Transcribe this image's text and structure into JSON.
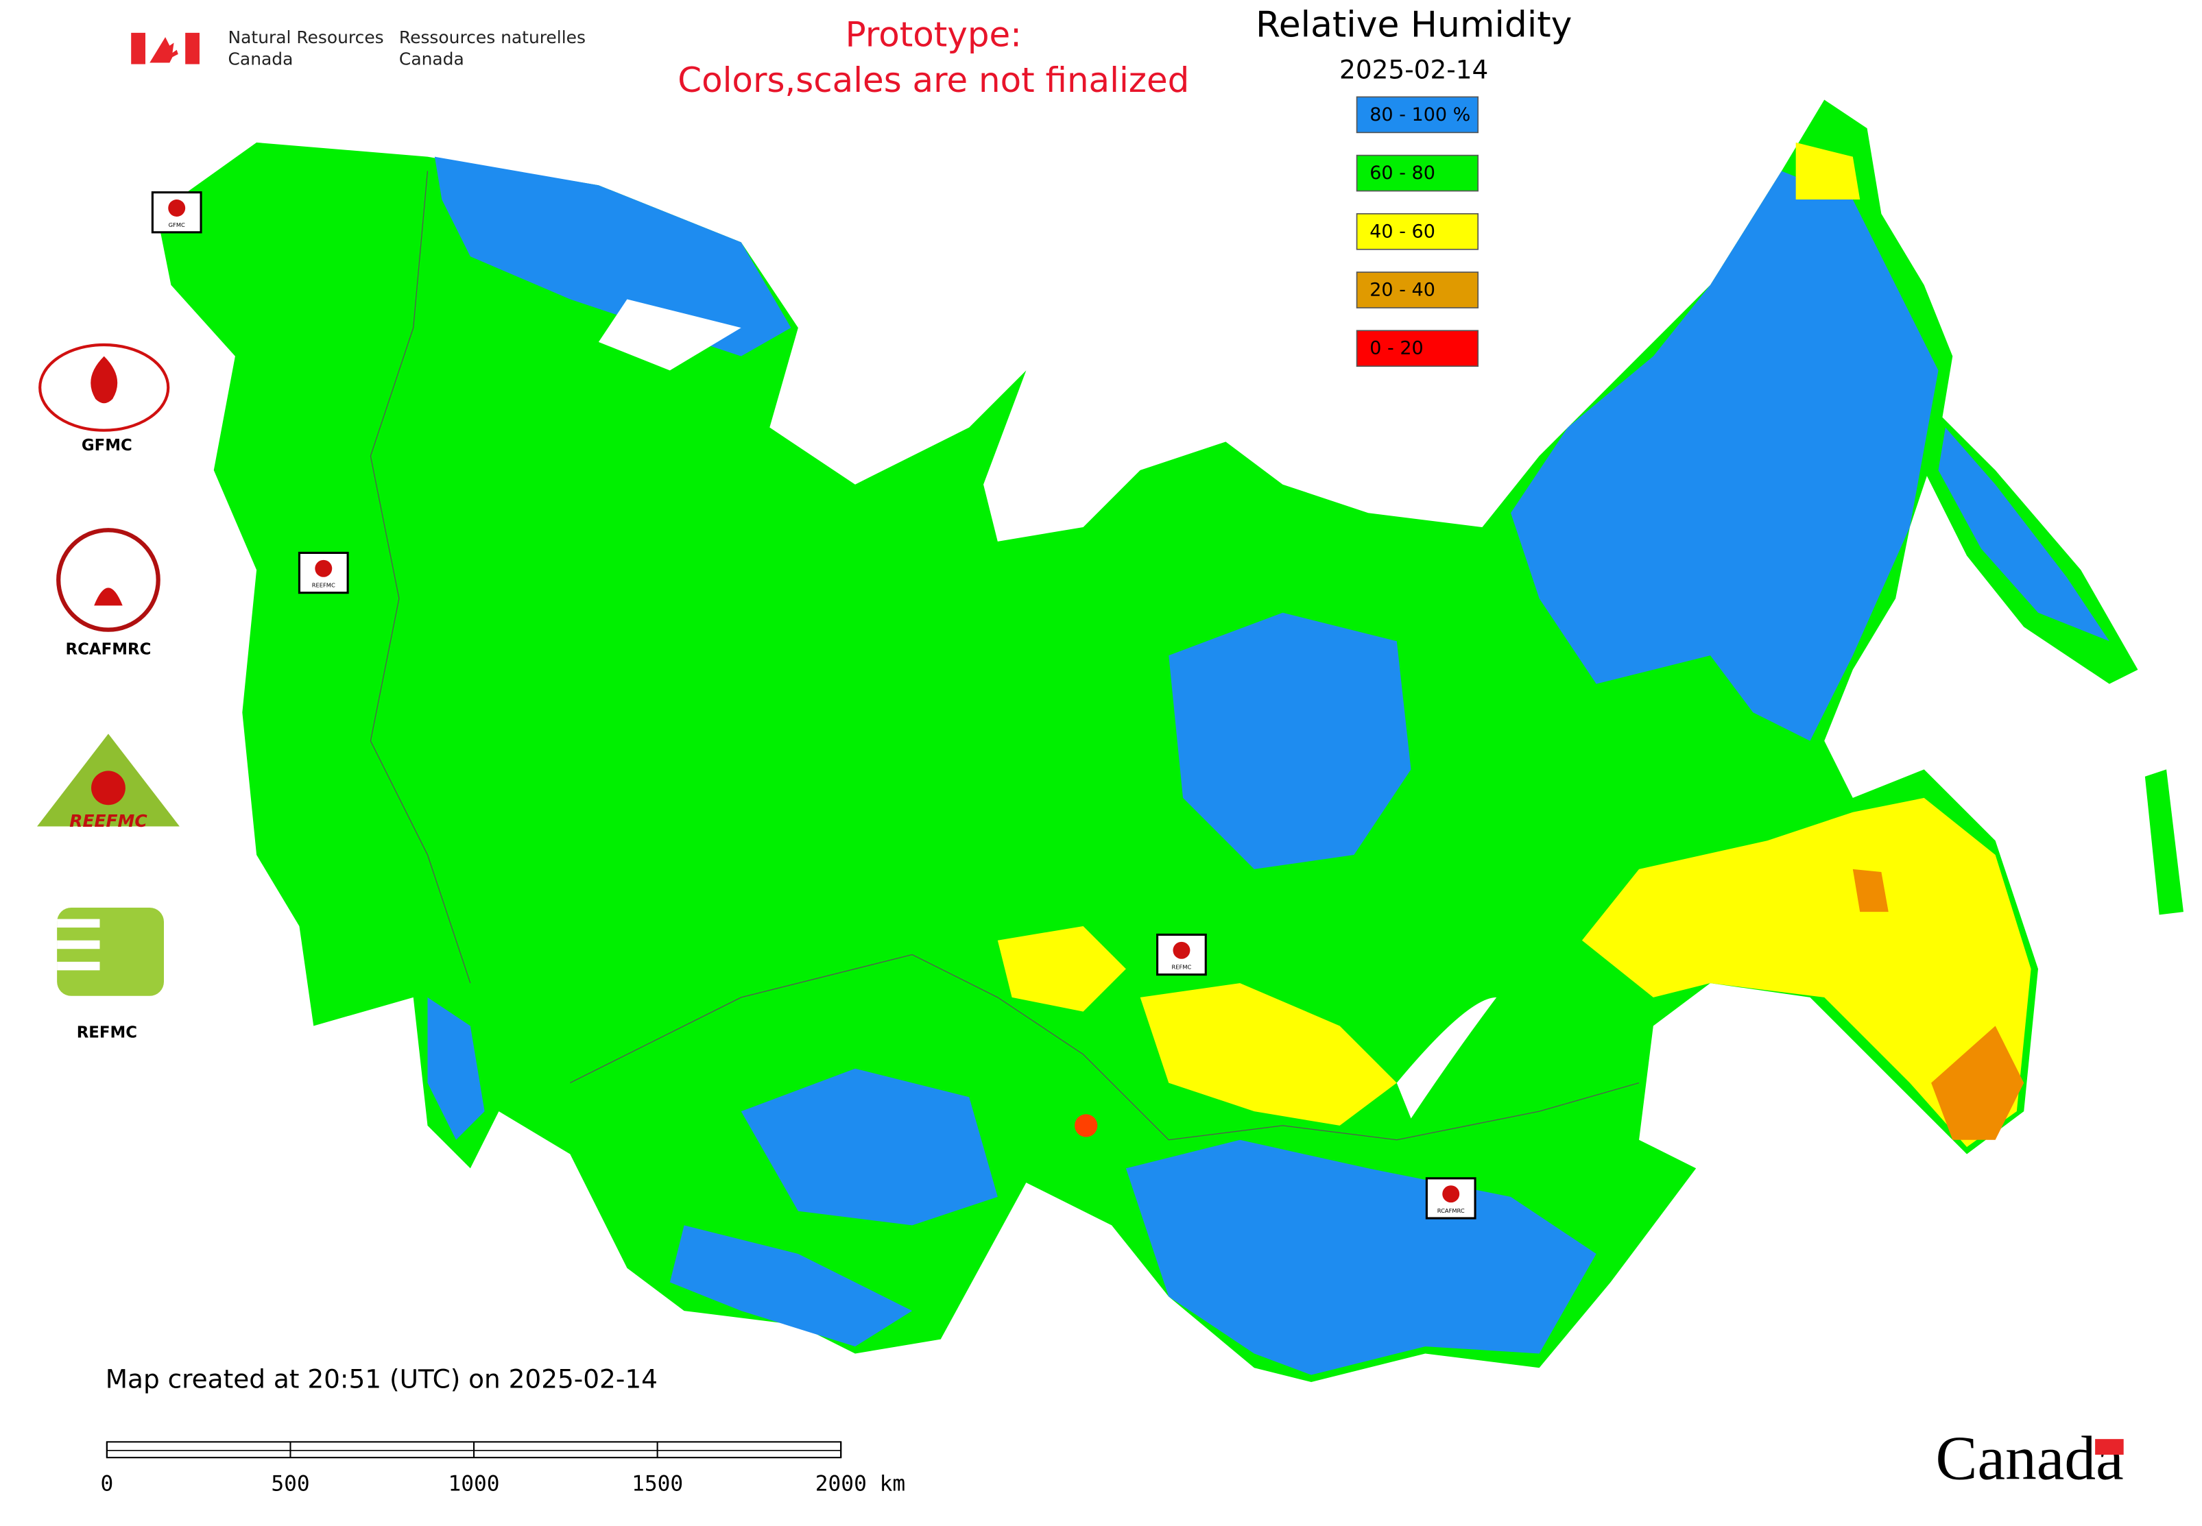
{
  "header": {
    "department_en": [
      "Natural Resources",
      "Canada"
    ],
    "department_fr": [
      "Ressources naturelles",
      "Canada"
    ]
  },
  "notice": [
    "Prototype:",
    "Colors,scales are not finalized"
  ],
  "title": "Relative Humidity",
  "date": "2025-02-14",
  "legend": [
    {
      "label": "80 - 100 %",
      "color": "#1e8cf0"
    },
    {
      "label": "60 - 80",
      "color": "#00f000"
    },
    {
      "label": "40 - 60",
      "color": "#ffff00"
    },
    {
      "label": "20 - 40",
      "color": "#e09a00"
    },
    {
      "label": "0 - 20",
      "color": "#ff0000"
    }
  ],
  "logos": {
    "gfmc": "GFMC",
    "rcafmrc": "RCAFMRC",
    "reefmc": "REEFMC",
    "refmc": "REFMC"
  },
  "markers": [
    "GFMC",
    "REEFMC",
    "REFMC",
    "RCAFMRC"
  ],
  "footer": {
    "created": "Map created at 20:51 (UTC) on 2025-02-14",
    "wordmark": "Canada"
  },
  "scale_bar": {
    "labels": [
      "0",
      "500",
      "1000",
      "1500",
      "2000 km"
    ]
  }
}
